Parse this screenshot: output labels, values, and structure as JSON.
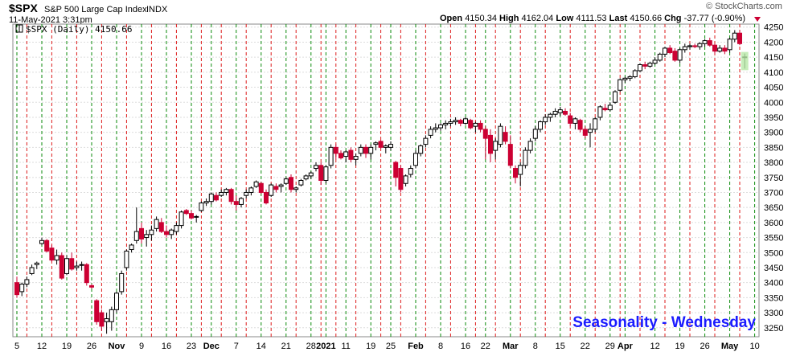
{
  "header": {
    "symbol": "$SPX",
    "name": "S&P 500 Large Cap Index",
    "exchange": "INDX",
    "timestamp": "11-May-2021 3:31pm",
    "watermark": "© StockCharts.com",
    "stats": {
      "open_label": "Open",
      "open": "4150.34",
      "high_label": "High",
      "high": "4162.04",
      "low_label": "Low",
      "low": "4111.53",
      "last_label": "Last",
      "last": "4150.66",
      "chg_label": "Chg",
      "chg": "-37.77 (-0.90%)"
    },
    "legend": "$SPX (Daily) 4150.66"
  },
  "annotation": "Seasonality - Wednesday",
  "chart_data": {
    "type": "candlestick",
    "ylim": [
      3220,
      4260
    ],
    "y_ticks": [
      3250,
      3300,
      3350,
      3400,
      3450,
      3500,
      3550,
      3600,
      3650,
      3700,
      3750,
      3800,
      3850,
      3900,
      3950,
      4000,
      4050,
      4100,
      4150,
      4200,
      4250
    ],
    "x_labels": [
      {
        "label": "5",
        "i": 0,
        "bold": false
      },
      {
        "label": "12",
        "i": 5,
        "bold": false
      },
      {
        "label": "19",
        "i": 10,
        "bold": false
      },
      {
        "label": "26",
        "i": 15,
        "bold": false
      },
      {
        "label": "Nov",
        "i": 20,
        "bold": true
      },
      {
        "label": "9",
        "i": 25,
        "bold": false
      },
      {
        "label": "16",
        "i": 30,
        "bold": false
      },
      {
        "label": "23",
        "i": 35,
        "bold": false
      },
      {
        "label": "Dec",
        "i": 39,
        "bold": true
      },
      {
        "label": "7",
        "i": 44,
        "bold": false
      },
      {
        "label": "14",
        "i": 49,
        "bold": false
      },
      {
        "label": "21",
        "i": 54,
        "bold": false
      },
      {
        "label": "28",
        "i": 59,
        "bold": false
      },
      {
        "label": "2021",
        "i": 62,
        "bold": true
      },
      {
        "label": "11",
        "i": 66,
        "bold": false
      },
      {
        "label": "19",
        "i": 71,
        "bold": false
      },
      {
        "label": "25",
        "i": 75,
        "bold": false
      },
      {
        "label": "Feb",
        "i": 80,
        "bold": true
      },
      {
        "label": "8",
        "i": 85,
        "bold": false
      },
      {
        "label": "16",
        "i": 90,
        "bold": false
      },
      {
        "label": "22",
        "i": 94,
        "bold": false
      },
      {
        "label": "Mar",
        "i": 99,
        "bold": true
      },
      {
        "label": "8",
        "i": 104,
        "bold": false
      },
      {
        "label": "15",
        "i": 109,
        "bold": false
      },
      {
        "label": "22",
        "i": 114,
        "bold": false
      },
      {
        "label": "29",
        "i": 119,
        "bold": false
      },
      {
        "label": "Apr",
        "i": 122,
        "bold": true
      },
      {
        "label": "12",
        "i": 128,
        "bold": false
      },
      {
        "label": "19",
        "i": 133,
        "bold": false
      },
      {
        "label": "26",
        "i": 138,
        "bold": false
      },
      {
        "label": "May",
        "i": 143,
        "bold": true
      },
      {
        "label": "10",
        "i": 148,
        "bold": false
      }
    ],
    "wednesday_index": [
      2,
      7,
      12,
      17,
      22,
      27,
      32,
      37,
      41,
      46,
      51,
      56,
      61,
      64,
      68,
      73,
      77,
      82,
      87,
      92,
      96,
      101,
      106,
      111,
      116,
      121,
      125,
      130,
      135,
      140,
      145
    ],
    "candles": [
      [
        3400,
        3420,
        3350,
        3360
      ],
      [
        3370,
        3400,
        3355,
        3395
      ],
      [
        3395,
        3420,
        3385,
        3410
      ],
      [
        3430,
        3460,
        3425,
        3450
      ],
      [
        3460,
        3470,
        3445,
        3465
      ],
      [
        3530,
        3550,
        3525,
        3540
      ],
      [
        3540,
        3545,
        3500,
        3505
      ],
      [
        3515,
        3525,
        3470,
        3475
      ],
      [
        3475,
        3510,
        3460,
        3490
      ],
      [
        3490,
        3500,
        3410,
        3415
      ],
      [
        3430,
        3490,
        3425,
        3480
      ],
      [
        3480,
        3500,
        3440,
        3445
      ],
      [
        3450,
        3470,
        3440,
        3455
      ],
      [
        3460,
        3470,
        3440,
        3460
      ],
      [
        3460,
        3465,
        3390,
        3400
      ],
      [
        3390,
        3395,
        3380,
        3385
      ],
      [
        3340,
        3345,
        3260,
        3270
      ],
      [
        3300,
        3310,
        3240,
        3255
      ],
      [
        3270,
        3300,
        3230,
        3280
      ],
      [
        3270,
        3320,
        3240,
        3310
      ],
      [
        3310,
        3370,
        3300,
        3365
      ],
      [
        3370,
        3440,
        3360,
        3430
      ],
      [
        3450,
        3510,
        3440,
        3505
      ],
      [
        3510,
        3530,
        3500,
        3525
      ],
      [
        3540,
        3650,
        3530,
        3570
      ],
      [
        3580,
        3600,
        3530,
        3545
      ],
      [
        3550,
        3575,
        3520,
        3560
      ],
      [
        3560,
        3590,
        3540,
        3575
      ],
      [
        3580,
        3620,
        3570,
        3610
      ],
      [
        3600,
        3615,
        3565,
        3570
      ],
      [
        3570,
        3590,
        3550,
        3560
      ],
      [
        3560,
        3580,
        3545,
        3575
      ],
      [
        3570,
        3600,
        3560,
        3590
      ],
      [
        3590,
        3640,
        3580,
        3635
      ],
      [
        3640,
        3645,
        3625,
        3630
      ],
      [
        3630,
        3640,
        3610,
        3615
      ],
      [
        3620,
        3625,
        3600,
        3620
      ],
      [
        3640,
        3670,
        3635,
        3665
      ],
      [
        3665,
        3680,
        3655,
        3670
      ],
      [
        3670,
        3700,
        3660,
        3695
      ],
      [
        3690,
        3700,
        3670,
        3675
      ],
      [
        3690,
        3710,
        3685,
        3700
      ],
      [
        3700,
        3715,
        3690,
        3710
      ],
      [
        3710,
        3715,
        3660,
        3670
      ],
      [
        3670,
        3690,
        3640,
        3660
      ],
      [
        3660,
        3685,
        3650,
        3680
      ],
      [
        3690,
        3710,
        3680,
        3700
      ],
      [
        3700,
        3720,
        3690,
        3715
      ],
      [
        3720,
        3740,
        3715,
        3735
      ],
      [
        3730,
        3735,
        3695,
        3700
      ],
      [
        3700,
        3710,
        3660,
        3665
      ],
      [
        3690,
        3730,
        3685,
        3725
      ],
      [
        3720,
        3730,
        3700,
        3710
      ],
      [
        3720,
        3730,
        3700,
        3725
      ],
      [
        3730,
        3750,
        3725,
        3745
      ],
      [
        3750,
        3760,
        3700,
        3710
      ],
      [
        3710,
        3720,
        3700,
        3715
      ],
      [
        3725,
        3745,
        3720,
        3740
      ],
      [
        3745,
        3760,
        3740,
        3755
      ],
      [
        3755,
        3770,
        3745,
        3765
      ],
      [
        3780,
        3800,
        3770,
        3790
      ],
      [
        3790,
        3800,
        3725,
        3740
      ],
      [
        3740,
        3790,
        3730,
        3785
      ],
      [
        3790,
        3860,
        3780,
        3850
      ],
      [
        3850,
        3860,
        3810,
        3830
      ],
      [
        3830,
        3840,
        3810,
        3815
      ],
      [
        3820,
        3840,
        3800,
        3835
      ],
      [
        3840,
        3850,
        3800,
        3810
      ],
      [
        3810,
        3830,
        3790,
        3820
      ],
      [
        3830,
        3860,
        3820,
        3850
      ],
      [
        3850,
        3860,
        3815,
        3830
      ],
      [
        3830,
        3860,
        3810,
        3850
      ],
      [
        3860,
        3870,
        3840,
        3865
      ],
      [
        3870,
        3875,
        3845,
        3850
      ],
      [
        3850,
        3860,
        3830,
        3855
      ],
      [
        3850,
        3870,
        3840,
        3860
      ],
      [
        3800,
        3805,
        3720,
        3750
      ],
      [
        3780,
        3790,
        3700,
        3710
      ],
      [
        3730,
        3760,
        3720,
        3755
      ],
      [
        3760,
        3790,
        3750,
        3780
      ],
      [
        3790,
        3840,
        3780,
        3830
      ],
      [
        3830,
        3860,
        3820,
        3855
      ],
      [
        3860,
        3890,
        3850,
        3880
      ],
      [
        3890,
        3920,
        3880,
        3910
      ],
      [
        3910,
        3930,
        3900,
        3915
      ],
      [
        3915,
        3930,
        3905,
        3925
      ],
      [
        3925,
        3940,
        3910,
        3930
      ],
      [
        3930,
        3945,
        3920,
        3935
      ],
      [
        3935,
        3950,
        3925,
        3940
      ],
      [
        3940,
        3945,
        3920,
        3930
      ],
      [
        3930,
        3950,
        3925,
        3945
      ],
      [
        3940,
        3945,
        3910,
        3915
      ],
      [
        3920,
        3935,
        3900,
        3930
      ],
      [
        3930,
        3940,
        3900,
        3910
      ],
      [
        3910,
        3920,
        3810,
        3880
      ],
      [
        3890,
        3910,
        3800,
        3830
      ],
      [
        3840,
        3880,
        3810,
        3870
      ],
      [
        3860,
        3930,
        3850,
        3920
      ],
      [
        3900,
        3920,
        3860,
        3870
      ],
      [
        3860,
        3890,
        3780,
        3790
      ],
      [
        3780,
        3790,
        3730,
        3750
      ],
      [
        3760,
        3800,
        3720,
        3790
      ],
      [
        3790,
        3850,
        3780,
        3840
      ],
      [
        3840,
        3880,
        3830,
        3870
      ],
      [
        3880,
        3920,
        3870,
        3910
      ],
      [
        3910,
        3940,
        3900,
        3935
      ],
      [
        3935,
        3960,
        3925,
        3950
      ],
      [
        3950,
        3965,
        3935,
        3960
      ],
      [
        3960,
        3980,
        3950,
        3970
      ],
      [
        3965,
        3985,
        3955,
        3975
      ],
      [
        3970,
        3980,
        3955,
        3960
      ],
      [
        3955,
        3965,
        3920,
        3930
      ],
      [
        3930,
        3950,
        3910,
        3945
      ],
      [
        3940,
        3945,
        3900,
        3910
      ],
      [
        3910,
        3920,
        3880,
        3890
      ],
      [
        3900,
        3930,
        3850,
        3910
      ],
      [
        3910,
        3950,
        3900,
        3945
      ],
      [
        3950,
        3990,
        3940,
        3985
      ],
      [
        3980,
        3995,
        3970,
        3975
      ],
      [
        3975,
        4000,
        3970,
        3990
      ],
      [
        4000,
        4040,
        3995,
        4035
      ],
      [
        4040,
        4080,
        4035,
        4075
      ],
      [
        4075,
        4085,
        4065,
        4080
      ],
      [
        4080,
        4090,
        4070,
        4085
      ],
      [
        4085,
        4110,
        4080,
        4105
      ],
      [
        4105,
        4130,
        4100,
        4125
      ],
      [
        4125,
        4135,
        4110,
        4120
      ],
      [
        4120,
        4135,
        4115,
        4130
      ],
      [
        4130,
        4150,
        4125,
        4140
      ],
      [
        4140,
        4165,
        4135,
        4160
      ],
      [
        4160,
        4185,
        4150,
        4180
      ],
      [
        4180,
        4190,
        4160,
        4165
      ],
      [
        4170,
        4180,
        4135,
        4140
      ],
      [
        4140,
        4180,
        4130,
        4175
      ],
      [
        4175,
        4195,
        4165,
        4185
      ],
      [
        4185,
        4195,
        4175,
        4188
      ],
      [
        4188,
        4195,
        4180,
        4185
      ],
      [
        4185,
        4200,
        4175,
        4195
      ],
      [
        4195,
        4210,
        4185,
        4205
      ],
      [
        4205,
        4215,
        4185,
        4190
      ],
      [
        4190,
        4195,
        4160,
        4170
      ],
      [
        4170,
        4190,
        4165,
        4180
      ],
      [
        4180,
        4190,
        4160,
        4170
      ],
      [
        4175,
        4215,
        4165,
        4210
      ],
      [
        4210,
        4240,
        4200,
        4230
      ],
      [
        4230,
        4240,
        4190,
        4195
      ],
      [
        4150,
        4162,
        4112,
        4151
      ]
    ]
  }
}
